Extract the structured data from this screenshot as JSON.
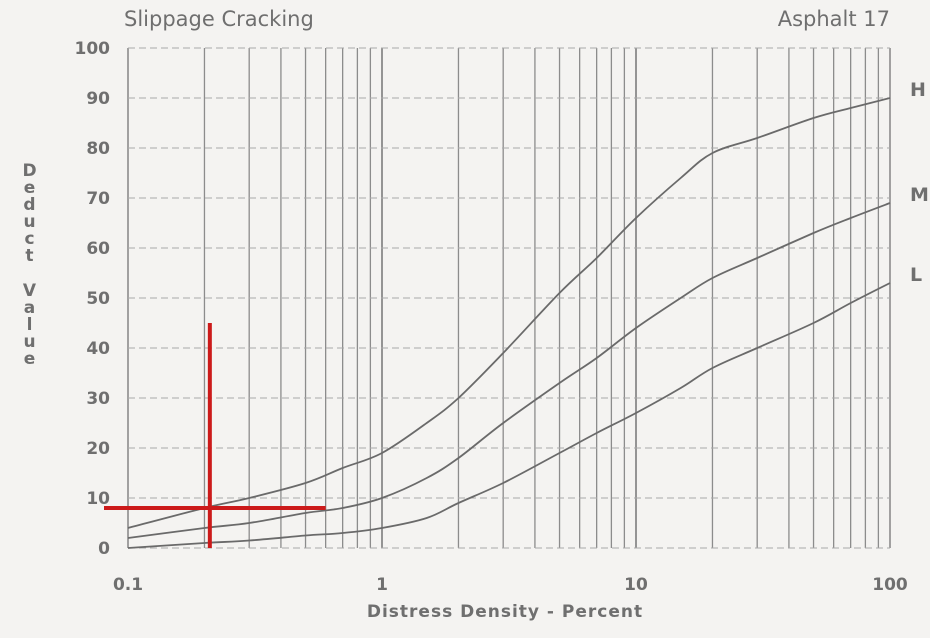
{
  "chart_data": {
    "type": "line",
    "title": "Slippage Cracking",
    "subtitle": "Asphalt 17",
    "xlabel": "Distress Density - Percent",
    "ylabel": "Deduct Value",
    "x_scale": "log",
    "xlim": [
      0.1,
      100
    ],
    "ylim": [
      0,
      100
    ],
    "grid": true,
    "x_tick_labels": [
      "0.1",
      "1",
      "10",
      "100"
    ],
    "y_tick_labels": [
      "0",
      "10",
      "20",
      "30",
      "40",
      "50",
      "60",
      "70",
      "80",
      "90",
      "100"
    ],
    "series": [
      {
        "name": "H",
        "x": [
          0.1,
          0.2,
          0.3,
          0.5,
          0.7,
          1,
          1.5,
          2,
          3,
          5,
          7,
          10,
          15,
          20,
          30,
          50,
          70,
          100
        ],
        "y": [
          4,
          8,
          10,
          13,
          16,
          19,
          25,
          30,
          39,
          51,
          58,
          66,
          74,
          79,
          82,
          86,
          88,
          90
        ]
      },
      {
        "name": "M",
        "x": [
          0.1,
          0.2,
          0.3,
          0.5,
          0.7,
          1,
          1.5,
          2,
          3,
          5,
          7,
          10,
          15,
          20,
          30,
          50,
          70,
          100
        ],
        "y": [
          2,
          4,
          5,
          7,
          8,
          10,
          14,
          18,
          25,
          33,
          38,
          44,
          50,
          54,
          58,
          63,
          66,
          69
        ]
      },
      {
        "name": "L",
        "x": [
          0.1,
          0.2,
          0.3,
          0.5,
          0.7,
          1,
          1.5,
          2,
          3,
          5,
          7,
          10,
          15,
          20,
          30,
          50,
          70,
          100
        ],
        "y": [
          0,
          1,
          1.5,
          2.5,
          3,
          4,
          6,
          9,
          13,
          19,
          23,
          27,
          32,
          36,
          40,
          45,
          49,
          53
        ]
      }
    ],
    "annotations": {
      "color": "#cc1a1a",
      "vertical_marker": {
        "x": 0.21,
        "y_range": [
          0,
          45
        ]
      },
      "horizontal_marker": {
        "y": 8,
        "x_range": [
          0.1,
          0.6
        ]
      }
    }
  }
}
